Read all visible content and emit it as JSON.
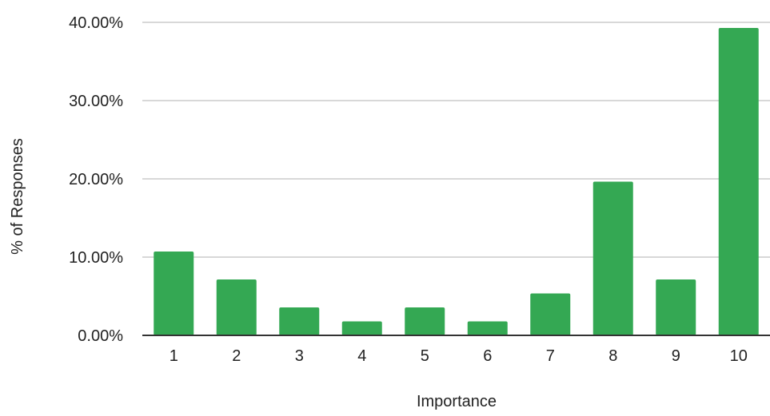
{
  "chart_data": {
    "type": "bar",
    "title": "",
    "xlabel": "Importance",
    "ylabel": "% of Responses",
    "categories": [
      "1",
      "2",
      "3",
      "4",
      "5",
      "6",
      "7",
      "8",
      "9",
      "10"
    ],
    "values": [
      10.71,
      7.14,
      3.57,
      1.79,
      3.57,
      1.79,
      5.36,
      19.64,
      7.14,
      39.29
    ],
    "ylim": [
      0,
      40
    ],
    "yticks": [
      0,
      10,
      20,
      30,
      40
    ],
    "ytick_labels": [
      "0.00%",
      "10.00%",
      "20.00%",
      "30.00%",
      "40.00%"
    ],
    "grid": true,
    "legend": "none",
    "colors": {
      "bar": "#34a853",
      "grid": "#cccccc",
      "axis": "#333333"
    }
  }
}
